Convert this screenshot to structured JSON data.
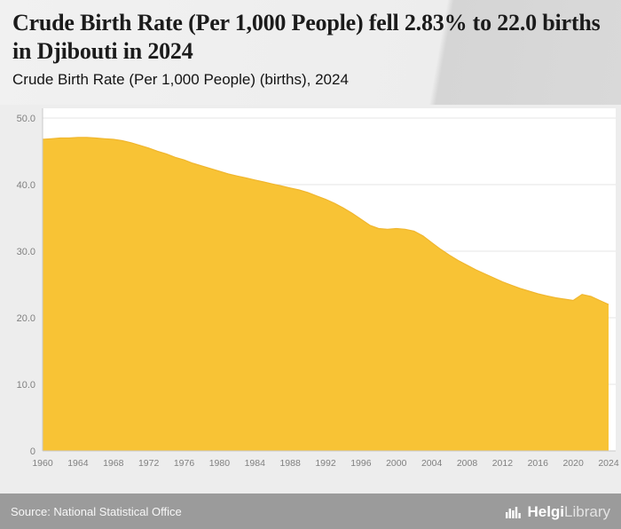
{
  "header": {
    "title": "Crude Birth Rate (Per 1,000 People) fell 2.83% to 22.0 births in Djibouti in 2024",
    "subtitle": "Crude Birth Rate (Per 1,000 People) (births), 2024"
  },
  "footer": {
    "source": "Source: National Statistical Office",
    "logo_helgi": "Helgi",
    "logo_library": "Library"
  },
  "chart_data": {
    "type": "area",
    "title": "Crude Birth Rate (Per 1,000 People) (births), 2024",
    "xlabel": "",
    "ylabel": "",
    "xlim": [
      1960,
      2024
    ],
    "ylim": [
      0,
      50
    ],
    "grid": true,
    "fill_color": "#F8C335",
    "edge_color": "#F0B62E",
    "grid_color": "#e4e4e4",
    "axis_color": "#c9c9c9",
    "tick_color": "#808080",
    "plot_bg": "#ffffff",
    "yticks": [
      0,
      10,
      20,
      30,
      40,
      50
    ],
    "ytick_labels": [
      "0",
      "10.0",
      "20.0",
      "30.0",
      "40.0",
      "50.0"
    ],
    "xticks": [
      1960,
      1964,
      1968,
      1972,
      1976,
      1980,
      1984,
      1988,
      1992,
      1996,
      2000,
      2004,
      2008,
      2012,
      2016,
      2020,
      2024
    ],
    "x": [
      1960,
      1961,
      1962,
      1963,
      1964,
      1965,
      1966,
      1967,
      1968,
      1969,
      1970,
      1971,
      1972,
      1973,
      1974,
      1975,
      1976,
      1977,
      1978,
      1979,
      1980,
      1981,
      1982,
      1983,
      1984,
      1985,
      1986,
      1987,
      1988,
      1989,
      1990,
      1991,
      1992,
      1993,
      1994,
      1995,
      1996,
      1997,
      1998,
      1999,
      2000,
      2001,
      2002,
      2003,
      2004,
      2005,
      2006,
      2007,
      2008,
      2009,
      2010,
      2011,
      2012,
      2013,
      2014,
      2015,
      2016,
      2017,
      2018,
      2019,
      2020,
      2021,
      2022,
      2023,
      2024
    ],
    "values": [
      46.8,
      46.9,
      47.0,
      47.0,
      47.1,
      47.1,
      47.0,
      46.9,
      46.8,
      46.6,
      46.3,
      45.9,
      45.5,
      45.0,
      44.6,
      44.1,
      43.7,
      43.2,
      42.8,
      42.4,
      42.0,
      41.6,
      41.3,
      41.0,
      40.7,
      40.4,
      40.1,
      39.8,
      39.5,
      39.2,
      38.8,
      38.3,
      37.8,
      37.2,
      36.5,
      35.7,
      34.8,
      33.9,
      33.4,
      33.3,
      33.4,
      33.3,
      33.0,
      32.3,
      31.3,
      30.3,
      29.4,
      28.6,
      27.9,
      27.2,
      26.6,
      26.0,
      25.4,
      24.9,
      24.4,
      24.0,
      23.6,
      23.3,
      23.0,
      22.8,
      22.6,
      23.5,
      23.2,
      22.6,
      22.0
    ]
  }
}
